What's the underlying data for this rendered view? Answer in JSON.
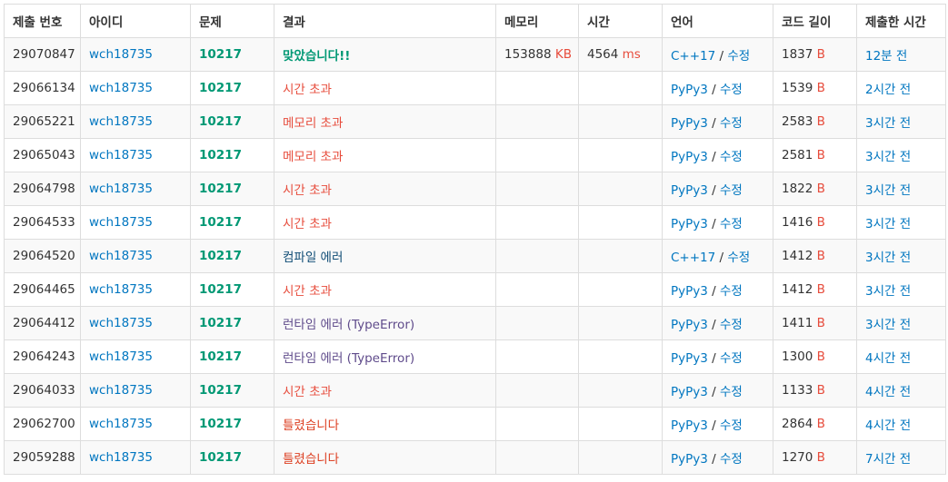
{
  "headers": [
    "제출 번호",
    "아이디",
    "문제",
    "결과",
    "메모리",
    "시간",
    "언어",
    "코드 길이",
    "제출한 시간"
  ],
  "memory_unit": "KB",
  "time_unit": "ms",
  "length_unit": "B",
  "edit_label": "수정",
  "lang_sep": " / ",
  "rows": [
    {
      "id": "29070847",
      "user": "wch18735",
      "problem": "10217",
      "result": "맞았습니다!!",
      "result_type": "ac",
      "memory": "153888",
      "time": "4564",
      "lang": "C++17",
      "length": "1837",
      "submitted": "12분 전"
    },
    {
      "id": "29066134",
      "user": "wch18735",
      "problem": "10217",
      "result": "시간 초과",
      "result_type": "tle",
      "memory": "",
      "time": "",
      "lang": "PyPy3",
      "length": "1539",
      "submitted": "2시간 전"
    },
    {
      "id": "29065221",
      "user": "wch18735",
      "problem": "10217",
      "result": "메모리 초과",
      "result_type": "mle",
      "memory": "",
      "time": "",
      "lang": "PyPy3",
      "length": "2583",
      "submitted": "3시간 전"
    },
    {
      "id": "29065043",
      "user": "wch18735",
      "problem": "10217",
      "result": "메모리 초과",
      "result_type": "mle",
      "memory": "",
      "time": "",
      "lang": "PyPy3",
      "length": "2581",
      "submitted": "3시간 전"
    },
    {
      "id": "29064798",
      "user": "wch18735",
      "problem": "10217",
      "result": "시간 초과",
      "result_type": "tle",
      "memory": "",
      "time": "",
      "lang": "PyPy3",
      "length": "1822",
      "submitted": "3시간 전"
    },
    {
      "id": "29064533",
      "user": "wch18735",
      "problem": "10217",
      "result": "시간 초과",
      "result_type": "tle",
      "memory": "",
      "time": "",
      "lang": "PyPy3",
      "length": "1416",
      "submitted": "3시간 전"
    },
    {
      "id": "29064520",
      "user": "wch18735",
      "problem": "10217",
      "result": "컴파일 에러",
      "result_type": "ce",
      "memory": "",
      "time": "",
      "lang": "C++17",
      "length": "1412",
      "submitted": "3시간 전"
    },
    {
      "id": "29064465",
      "user": "wch18735",
      "problem": "10217",
      "result": "시간 초과",
      "result_type": "tle",
      "memory": "",
      "time": "",
      "lang": "PyPy3",
      "length": "1412",
      "submitted": "3시간 전"
    },
    {
      "id": "29064412",
      "user": "wch18735",
      "problem": "10217",
      "result": "런타임 에러 (TypeError)",
      "result_type": "rte",
      "memory": "",
      "time": "",
      "lang": "PyPy3",
      "length": "1411",
      "submitted": "3시간 전"
    },
    {
      "id": "29064243",
      "user": "wch18735",
      "problem": "10217",
      "result": "런타임 에러 (TypeError)",
      "result_type": "rte",
      "memory": "",
      "time": "",
      "lang": "PyPy3",
      "length": "1300",
      "submitted": "4시간 전"
    },
    {
      "id": "29064033",
      "user": "wch18735",
      "problem": "10217",
      "result": "시간 초과",
      "result_type": "tle",
      "memory": "",
      "time": "",
      "lang": "PyPy3",
      "length": "1133",
      "submitted": "4시간 전"
    },
    {
      "id": "29062700",
      "user": "wch18735",
      "problem": "10217",
      "result": "틀렸습니다",
      "result_type": "wa",
      "memory": "",
      "time": "",
      "lang": "PyPy3",
      "length": "2864",
      "submitted": "4시간 전"
    },
    {
      "id": "29059288",
      "user": "wch18735",
      "problem": "10217",
      "result": "틀렸습니다",
      "result_type": "wa",
      "memory": "",
      "time": "",
      "lang": "PyPy3",
      "length": "1270",
      "submitted": "7시간 전"
    }
  ]
}
